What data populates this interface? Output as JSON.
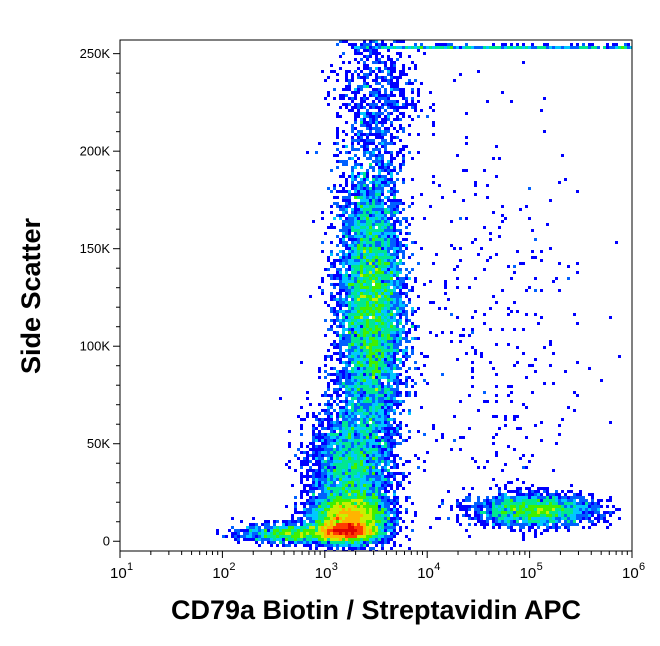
{
  "chart_data": {
    "type": "scatter",
    "subtype": "flow-cytometry-density-dot-plot",
    "xlabel": "CD79a Biotin / Streptavidin APC",
    "ylabel": "Side Scatter",
    "x_scale": "log",
    "xlim": [
      10,
      1000000
    ],
    "ylim": [
      -5000,
      257000
    ],
    "x_ticks": [
      {
        "value": 10,
        "base": "10",
        "exp": "1"
      },
      {
        "value": 100,
        "base": "10",
        "exp": "2"
      },
      {
        "value": 1000,
        "base": "10",
        "exp": "3"
      },
      {
        "value": 10000,
        "base": "10",
        "exp": "4"
      },
      {
        "value": 100000,
        "base": "10",
        "exp": "5"
      },
      {
        "value": 1000000,
        "base": "10",
        "exp": "6"
      }
    ],
    "y_ticks": [
      {
        "value": 0,
        "label": "0"
      },
      {
        "value": 50000,
        "label": "50K"
      },
      {
        "value": 100000,
        "label": "100K"
      },
      {
        "value": 150000,
        "label": "150K"
      },
      {
        "value": 200000,
        "label": "200K"
      },
      {
        "value": 250000,
        "label": "250K"
      }
    ],
    "density_colors": [
      "#0000ff",
      "#0060ff",
      "#00c8ff",
      "#00e890",
      "#40f000",
      "#c8f000",
      "#ffb400",
      "#ff3c00",
      "#e00000"
    ],
    "populations": [
      {
        "x_log_center": 3.45,
        "x_log_sd": 0.16,
        "y_center": 120000,
        "y_sd": 38000,
        "count": 9000
      },
      {
        "x_log_center": 3.25,
        "x_log_sd": 0.2,
        "y_center": 35000,
        "y_sd": 18000,
        "count": 3500
      },
      {
        "x_log_center": 3.25,
        "x_log_sd": 0.18,
        "y_center": 12000,
        "y_sd": 6000,
        "count": 4000
      },
      {
        "x_log_center": 3.2,
        "x_log_sd": 0.14,
        "y_center": 5000,
        "y_sd": 2500,
        "count": 2500
      },
      {
        "x_log_center": 5.05,
        "x_log_sd": 0.3,
        "y_center": 16000,
        "y_sd": 4000,
        "count": 2200
      },
      {
        "x_log_center": 2.7,
        "x_log_sd": 0.25,
        "y_center": 4000,
        "y_sd": 2500,
        "count": 1200
      },
      {
        "x_log_center": 3.5,
        "x_log_sd": 0.2,
        "y_center": 230000,
        "y_sd": 20000,
        "count": 700
      },
      {
        "x_log_center": 4.6,
        "x_log_sd": 0.5,
        "y_center": 110000,
        "y_sd": 60000,
        "count": 350
      }
    ],
    "saturated_top_band": {
      "x_log_min": 3.3,
      "x_log_max": 6.0,
      "y": 254000,
      "count": 500
    }
  }
}
